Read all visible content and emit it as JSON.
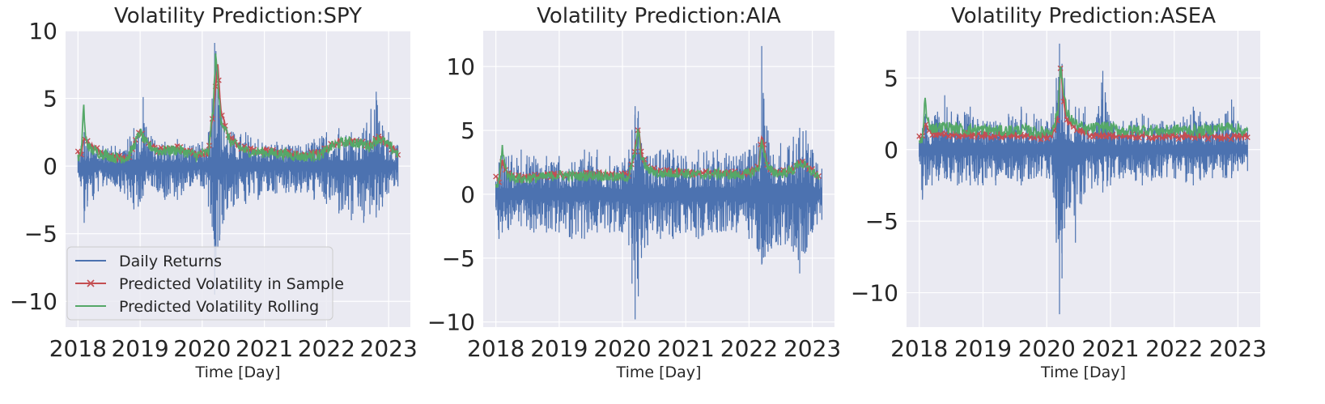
{
  "colors": {
    "background": "#ffffff",
    "plot_bg": "#eaeaf2",
    "grid": "#ffffff",
    "text": "#262626",
    "returns": "#4c72b0",
    "in_sample": "#c44e52",
    "rolling": "#55a868"
  },
  "legend": {
    "placement": "lower-left",
    "entries": [
      {
        "label": "Daily Returns",
        "series": "returns"
      },
      {
        "label": "Predicted Volatility in Sample",
        "series": "in_sample"
      },
      {
        "label": "Predicted Volatility Rolling",
        "series": "rolling"
      }
    ]
  },
  "chart_data": [
    {
      "type": "line",
      "title": "Volatility Prediction:SPY",
      "xlabel": "Time [Day]",
      "ylabel": "",
      "xlim": [
        2017.8,
        2023.35
      ],
      "ylim": [
        -11.9,
        10
      ],
      "xticks": [
        2018,
        2019,
        2020,
        2021,
        2022,
        2023
      ],
      "xtick_labels": [
        "2018",
        "2019",
        "2020",
        "2021",
        "2022",
        "2023"
      ],
      "yticks": [
        -10,
        -5,
        0,
        5,
        10
      ],
      "ytick_labels": [
        "−10",
        "−5",
        "0",
        "5",
        "10"
      ],
      "grid": true,
      "show_legend": true,
      "series": [
        {
          "name": "Daily Returns",
          "key": "returns",
          "x": [
            2018.0,
            2018.05,
            2018.1,
            2018.15,
            2018.25,
            2018.4,
            2018.6,
            2018.8,
            2018.9,
            2018.97,
            2019.05,
            2019.2,
            2019.4,
            2019.6,
            2019.8,
            2020.0,
            2020.1,
            2020.16,
            2020.2,
            2020.22,
            2020.25,
            2020.28,
            2020.35,
            2020.5,
            2020.7,
            2020.9,
            2021.2,
            2021.5,
            2021.8,
            2022.0,
            2022.2,
            2022.4,
            2022.6,
            2022.8,
            2022.9,
            2023.0,
            2023.15
          ],
          "lows": [
            -0.5,
            -1.5,
            -4.2,
            -3.0,
            -2.5,
            -1.5,
            -1.5,
            -2.5,
            -3.2,
            -3.0,
            -2.2,
            -1.5,
            -2.5,
            -2.5,
            -1.5,
            -1.5,
            -3.0,
            -4.5,
            -9.5,
            -7.0,
            -6.0,
            -5.5,
            -4.0,
            -3.0,
            -2.8,
            -2.5,
            -2.0,
            -2.0,
            -2.5,
            -2.8,
            -3.5,
            -4.0,
            -4.2,
            -3.8,
            -3.0,
            -2.0,
            -1.5
          ],
          "highs": [
            0.8,
            1.5,
            2.5,
            2.0,
            1.5,
            1.5,
            1.5,
            2.0,
            2.8,
            2.5,
            5.1,
            2.0,
            1.8,
            2.0,
            1.5,
            1.8,
            2.5,
            5.0,
            9.1,
            8.5,
            6.0,
            4.5,
            3.5,
            2.5,
            2.5,
            2.0,
            1.8,
            1.5,
            2.0,
            2.5,
            2.8,
            2.5,
            2.8,
            5.5,
            3.0,
            2.5,
            1.5
          ]
        },
        {
          "name": "Predicted Volatility in Sample",
          "key": "in_sample",
          "x": [
            2018.0,
            2018.05,
            2018.1,
            2018.2,
            2018.4,
            2018.6,
            2018.8,
            2018.9,
            2019.0,
            2019.1,
            2019.3,
            2019.6,
            2019.9,
            2020.1,
            2020.2,
            2020.25,
            2020.3,
            2020.45,
            2020.7,
            2021.0,
            2021.3,
            2021.6,
            2021.9,
            2022.1,
            2022.3,
            2022.5,
            2022.7,
            2022.85,
            2023.0,
            2023.15
          ],
          "y": [
            0.9,
            0.7,
            2.2,
            1.5,
            0.9,
            0.6,
            0.6,
            1.6,
            2.6,
            1.8,
            1.2,
            1.3,
            0.9,
            1.0,
            5.0,
            7.5,
            4.0,
            2.0,
            1.2,
            1.1,
            1.0,
            0.8,
            0.9,
            1.6,
            1.9,
            1.8,
            1.6,
            2.2,
            1.6,
            1.0
          ]
        },
        {
          "name": "Predicted Volatility Rolling",
          "key": "rolling",
          "x": [
            2018.0,
            2018.05,
            2018.09,
            2018.12,
            2018.2,
            2018.4,
            2018.6,
            2018.8,
            2018.9,
            2019.0,
            2019.1,
            2019.3,
            2019.6,
            2019.9,
            2020.1,
            2020.18,
            2020.22,
            2020.26,
            2020.3,
            2020.45,
            2020.7,
            2021.0,
            2021.3,
            2021.6,
            2021.9,
            2022.1,
            2022.3,
            2022.5,
            2022.7,
            2022.85,
            2023.0,
            2023.15
          ],
          "y": [
            0.5,
            0.8,
            4.6,
            2.0,
            1.2,
            0.9,
            0.6,
            0.6,
            1.5,
            2.5,
            1.6,
            1.1,
            1.2,
            0.8,
            1.0,
            4.5,
            8.6,
            5.5,
            3.5,
            1.8,
            1.1,
            1.0,
            0.9,
            0.7,
            0.8,
            1.5,
            1.8,
            1.7,
            1.5,
            2.1,
            1.5,
            0.9
          ]
        }
      ]
    },
    {
      "type": "line",
      "title": "Volatility Prediction:AIA",
      "xlabel": "Time [Day]",
      "ylabel": "",
      "xlim": [
        2017.8,
        2023.35
      ],
      "ylim": [
        -10.4,
        12.8
      ],
      "xticks": [
        2018,
        2019,
        2020,
        2021,
        2022,
        2023
      ],
      "xtick_labels": [
        "2018",
        "2019",
        "2020",
        "2021",
        "2022",
        "2023"
      ],
      "yticks": [
        -10,
        -5,
        0,
        5,
        10
      ],
      "ytick_labels": [
        "−10",
        "−5",
        "0",
        "5",
        "10"
      ],
      "grid": true,
      "show_legend": false,
      "series": [
        {
          "name": "Daily Returns",
          "key": "returns",
          "x": [
            2018.0,
            2018.05,
            2018.1,
            2018.2,
            2018.4,
            2018.6,
            2018.8,
            2019.0,
            2019.2,
            2019.4,
            2019.6,
            2019.8,
            2020.0,
            2020.1,
            2020.15,
            2020.2,
            2020.25,
            2020.3,
            2020.4,
            2020.6,
            2020.8,
            2021.0,
            2021.2,
            2021.5,
            2021.8,
            2022.0,
            2022.15,
            2022.2,
            2022.3,
            2022.5,
            2022.7,
            2022.8,
            2022.9,
            2023.0,
            2023.15
          ],
          "lows": [
            -1.0,
            -3.5,
            -3.0,
            -2.8,
            -2.5,
            -3.0,
            -3.0,
            -3.0,
            -3.5,
            -3.5,
            -3.0,
            -3.0,
            -3.0,
            -4.0,
            -7.0,
            -9.8,
            -8.0,
            -5.0,
            -4.0,
            -3.5,
            -3.5,
            -3.0,
            -3.5,
            -3.0,
            -3.0,
            -3.5,
            -4.5,
            -5.5,
            -4.5,
            -4.0,
            -4.5,
            -6.2,
            -4.5,
            -3.0,
            -2.0
          ],
          "highs": [
            1.0,
            2.5,
            3.5,
            3.0,
            3.5,
            3.0,
            3.0,
            3.0,
            2.5,
            3.5,
            3.5,
            3.0,
            2.5,
            3.5,
            5.0,
            6.9,
            6.5,
            4.0,
            3.0,
            3.5,
            3.5,
            3.0,
            3.5,
            3.5,
            3.0,
            3.5,
            4.5,
            11.6,
            5.0,
            4.0,
            4.5,
            5.2,
            5.0,
            3.5,
            2.0
          ]
        },
        {
          "name": "Predicted Volatility in Sample",
          "key": "in_sample",
          "x": [
            2018.0,
            2018.05,
            2018.1,
            2018.2,
            2018.4,
            2018.7,
            2019.0,
            2019.3,
            2019.6,
            2019.9,
            2020.1,
            2020.2,
            2020.25,
            2020.3,
            2020.4,
            2020.6,
            2020.9,
            2021.2,
            2021.5,
            2021.8,
            2022.0,
            2022.15,
            2022.2,
            2022.3,
            2022.5,
            2022.7,
            2022.8,
            2022.95,
            2023.1
          ],
          "y": [
            1.4,
            1.0,
            2.5,
            1.5,
            1.3,
            1.4,
            1.6,
            1.5,
            1.6,
            1.4,
            1.5,
            3.5,
            5.4,
            3.0,
            2.0,
            1.7,
            1.8,
            1.6,
            1.7,
            1.6,
            1.7,
            2.2,
            4.7,
            2.0,
            1.7,
            2.0,
            2.6,
            2.0,
            1.5
          ]
        },
        {
          "name": "Predicted Volatility Rolling",
          "key": "rolling",
          "x": [
            2018.0,
            2018.05,
            2018.1,
            2018.14,
            2018.2,
            2018.4,
            2018.7,
            2019.0,
            2019.3,
            2019.6,
            2019.9,
            2020.1,
            2020.2,
            2020.25,
            2020.3,
            2020.4,
            2020.6,
            2020.9,
            2021.2,
            2021.5,
            2021.8,
            2022.0,
            2022.15,
            2022.2,
            2022.3,
            2022.5,
            2022.7,
            2022.8,
            2022.95,
            2023.1
          ],
          "y": [
            0.5,
            1.0,
            3.8,
            2.2,
            1.4,
            1.2,
            1.3,
            1.5,
            1.4,
            1.5,
            1.3,
            1.4,
            3.2,
            5.0,
            2.8,
            1.9,
            1.6,
            1.7,
            1.5,
            1.6,
            1.5,
            1.6,
            2.0,
            4.2,
            1.9,
            1.6,
            1.9,
            2.5,
            1.9,
            1.4
          ]
        }
      ]
    },
    {
      "type": "line",
      "title": "Volatility Prediction:ASEA",
      "xlabel": "Time [Day]",
      "ylabel": "",
      "xlim": [
        2017.8,
        2023.35
      ],
      "ylim": [
        -12.4,
        8.3
      ],
      "xticks": [
        2018,
        2019,
        2020,
        2021,
        2022,
        2023
      ],
      "xtick_labels": [
        "2018",
        "2019",
        "2020",
        "2021",
        "2022",
        "2023"
      ],
      "yticks": [
        -10,
        -5,
        0,
        5
      ],
      "ytick_labels": [
        "−10",
        "−5",
        "0",
        "5"
      ],
      "grid": true,
      "show_legend": false,
      "series": [
        {
          "name": "Daily Returns",
          "key": "returns",
          "x": [
            2018.0,
            2018.05,
            2018.1,
            2018.2,
            2018.4,
            2018.6,
            2018.8,
            2019.0,
            2019.2,
            2019.4,
            2019.6,
            2019.8,
            2020.0,
            2020.1,
            2020.15,
            2020.2,
            2020.24,
            2020.28,
            2020.35,
            2020.45,
            2020.6,
            2020.8,
            2020.88,
            2021.0,
            2021.2,
            2021.5,
            2021.8,
            2022.0,
            2022.3,
            2022.6,
            2022.8,
            2022.9,
            2023.0,
            2023.15
          ],
          "lows": [
            -0.5,
            -3.5,
            -2.5,
            -2.5,
            -2.0,
            -2.5,
            -2.5,
            -2.5,
            -2.5,
            -2.0,
            -2.5,
            -2.0,
            -2.0,
            -3.0,
            -6.5,
            -11.5,
            -9.0,
            -5.5,
            -4.0,
            -6.5,
            -3.0,
            -2.5,
            -3.0,
            -2.5,
            -2.0,
            -2.5,
            -2.0,
            -2.0,
            -2.5,
            -2.0,
            -2.0,
            -2.0,
            -1.5,
            -1.5
          ],
          "highs": [
            0.5,
            1.5,
            2.5,
            2.0,
            3.8,
            2.5,
            3.0,
            2.0,
            2.0,
            2.5,
            3.0,
            2.5,
            2.0,
            3.0,
            5.0,
            7.4,
            6.0,
            5.0,
            3.5,
            3.0,
            3.0,
            2.5,
            5.5,
            2.0,
            2.0,
            2.5,
            2.0,
            2.0,
            3.0,
            2.0,
            2.5,
            3.5,
            2.0,
            1.5
          ]
        },
        {
          "name": "Predicted Volatility in Sample",
          "key": "in_sample",
          "x": [
            2018.0,
            2018.05,
            2018.1,
            2018.2,
            2018.4,
            2018.7,
            2019.0,
            2019.3,
            2019.6,
            2019.9,
            2020.1,
            2020.18,
            2020.22,
            2020.26,
            2020.32,
            2020.45,
            2020.6,
            2020.9,
            2021.2,
            2021.5,
            2021.8,
            2022.1,
            2022.4,
            2022.7,
            2022.9,
            2023.15
          ],
          "y": [
            1.0,
            0.8,
            1.8,
            1.2,
            1.0,
            1.0,
            1.0,
            1.0,
            1.0,
            0.9,
            1.0,
            2.5,
            6.0,
            3.5,
            2.0,
            1.5,
            1.1,
            1.0,
            0.9,
            0.9,
            0.9,
            0.9,
            0.9,
            0.9,
            0.9,
            0.9
          ]
        },
        {
          "name": "Predicted Volatility Rolling",
          "key": "rolling",
          "x": [
            2018.0,
            2018.05,
            2018.09,
            2018.12,
            2018.2,
            2018.4,
            2018.7,
            2019.0,
            2019.3,
            2019.6,
            2019.9,
            2020.1,
            2020.18,
            2020.22,
            2020.26,
            2020.32,
            2020.45,
            2020.6,
            2020.9,
            2021.2,
            2021.5,
            2021.8,
            2022.1,
            2022.4,
            2022.7,
            2022.9,
            2023.15
          ],
          "y": [
            0.5,
            0.7,
            3.6,
            2.0,
            1.5,
            1.6,
            1.4,
            1.4,
            1.3,
            1.4,
            1.2,
            1.4,
            2.8,
            6.2,
            4.0,
            2.5,
            1.8,
            1.4,
            1.6,
            1.3,
            1.4,
            1.3,
            1.4,
            1.3,
            1.5,
            1.6,
            1.2
          ]
        }
      ]
    }
  ]
}
